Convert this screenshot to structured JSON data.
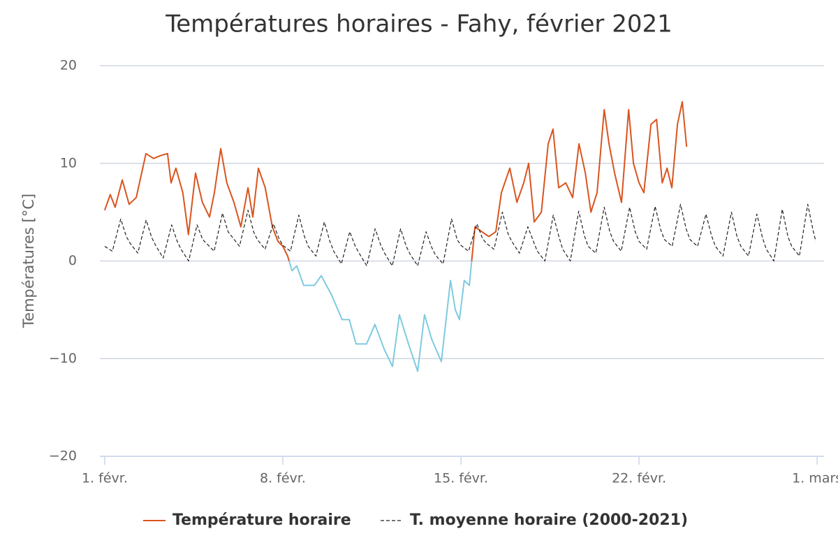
{
  "chart_data": {
    "type": "line",
    "title": "Températures horaires - Fahy, février 2021",
    "ylabel": "Températures [°C]",
    "xlim": [
      0.81,
      29.27
    ],
    "ylim": [
      -20,
      20
    ],
    "xticks": [
      {
        "value": 1,
        "label": "1. févr."
      },
      {
        "value": 8,
        "label": "8. févr."
      },
      {
        "value": 15,
        "label": "15. févr."
      },
      {
        "value": 22,
        "label": "22. févr."
      },
      {
        "value": 29,
        "label": "1. mars"
      }
    ],
    "yticks": [
      {
        "value": -20,
        "label": "−20"
      },
      {
        "value": -10,
        "label": "−10"
      },
      0,
      10,
      20
    ],
    "grid": true,
    "legend": "bottom",
    "series": [
      {
        "name": "Température horaire",
        "color": "#d9541e",
        "negative_color": "#7ecbe0",
        "dash": false,
        "x": [
          1.0,
          1.22,
          1.41,
          1.69,
          1.96,
          2.24,
          2.62,
          2.92,
          3.2,
          3.47,
          3.61,
          3.8,
          4.07,
          4.29,
          4.57,
          4.84,
          5.12,
          5.31,
          5.56,
          5.8,
          6.08,
          6.35,
          6.63,
          6.82,
          7.04,
          7.31,
          7.59,
          7.81,
          8.0,
          8.19,
          8.36,
          8.55,
          8.82,
          9.24,
          9.51,
          9.92,
          10.33,
          10.61,
          10.88,
          11.29,
          11.62,
          11.98,
          12.31,
          12.58,
          12.94,
          13.3,
          13.57,
          13.85,
          14.23,
          14.59,
          14.78,
          14.94,
          15.13,
          15.33,
          15.44,
          15.55,
          15.82,
          16.1,
          16.37,
          16.59,
          16.92,
          17.2,
          17.47,
          17.66,
          17.88,
          18.16,
          18.43,
          18.62,
          18.84,
          19.12,
          19.39,
          19.64,
          19.89,
          20.11,
          20.35,
          20.63,
          20.82,
          21.04,
          21.31,
          21.59,
          21.78,
          22.0,
          22.19,
          22.47,
          22.69,
          22.91,
          23.1,
          23.29,
          23.51,
          23.7,
          23.87
        ],
        "values": [
          5.2,
          6.8,
          5.5,
          8.3,
          5.8,
          6.5,
          11,
          10.5,
          10.8,
          11,
          8,
          9.5,
          7,
          2.7,
          9,
          6,
          4.5,
          7,
          11.5,
          8,
          6,
          3.5,
          7.5,
          4.5,
          9.5,
          7.5,
          3.5,
          2,
          1.5,
          0.5,
          -1,
          -0.5,
          -2.5,
          -2.5,
          -1.5,
          -3.5,
          -6,
          -6,
          -8.5,
          -8.5,
          -6.5,
          -9,
          -10.8,
          -5.5,
          -8.5,
          -11.3,
          -5.5,
          -8,
          -10.3,
          -2,
          -5,
          -6,
          -2,
          -2.5,
          0.5,
          3.5,
          3,
          2.5,
          3,
          7,
          9.5,
          6,
          8,
          10,
          4,
          5,
          12,
          13.5,
          7.5,
          8,
          6.5,
          12,
          9,
          5,
          7,
          15.5,
          12,
          9,
          6,
          15.5,
          10,
          8,
          7,
          14,
          14.5,
          8,
          9.5,
          7.5,
          14,
          16.3,
          11.7
        ]
      },
      {
        "name": "T. moyenne horaire (2000-2021)",
        "color": "#222222",
        "dash": true,
        "x": [
          1,
          1.3,
          1.63,
          1.85,
          2,
          2.3,
          2.63,
          2.85,
          3,
          3.3,
          3.63,
          3.85,
          4,
          4.3,
          4.63,
          4.85,
          5,
          5.3,
          5.63,
          5.85,
          6,
          6.3,
          6.63,
          6.85,
          7,
          7.3,
          7.63,
          7.85,
          8,
          8.3,
          8.63,
          8.85,
          9,
          9.3,
          9.63,
          9.85,
          10,
          10.3,
          10.63,
          10.85,
          11,
          11.3,
          11.63,
          11.85,
          12,
          12.3,
          12.63,
          12.85,
          13,
          13.3,
          13.63,
          13.85,
          14,
          14.3,
          14.63,
          14.85,
          15,
          15.3,
          15.63,
          15.85,
          16,
          16.3,
          16.63,
          16.85,
          17,
          17.3,
          17.63,
          17.85,
          18,
          18.3,
          18.63,
          18.85,
          19,
          19.3,
          19.63,
          19.85,
          20,
          20.3,
          20.63,
          20.85,
          21,
          21.3,
          21.63,
          21.85,
          22,
          22.3,
          22.63,
          22.85,
          23,
          23.3,
          23.63,
          23.85,
          24,
          24.3,
          24.63,
          24.85,
          25,
          25.3,
          25.63,
          25.85,
          26,
          26.3,
          26.63,
          26.85,
          27,
          27.3,
          27.63,
          27.85,
          28,
          28.3,
          28.63,
          28.85,
          28.95
        ],
        "values": [
          1.5,
          1.0,
          4.3,
          2.5,
          1.8,
          0.8,
          4.2,
          2.4,
          1.6,
          0.3,
          3.7,
          2.0,
          1.2,
          0,
          3.7,
          2.2,
          1.8,
          1.0,
          4.9,
          3.0,
          2.5,
          1.5,
          5.2,
          3.0,
          2.2,
          1.2,
          3.8,
          2.3,
          1.6,
          1.0,
          4.7,
          2.5,
          1.5,
          0.5,
          4.0,
          2.0,
          1.0,
          -0.3,
          3.0,
          1.5,
          0.8,
          -0.5,
          3.3,
          1.6,
          0.8,
          -0.5,
          3.3,
          1.5,
          0.7,
          -0.5,
          3.0,
          1.4,
          0.6,
          -0.3,
          4.3,
          2.2,
          1.6,
          1.0,
          3.8,
          2.3,
          1.8,
          1.2,
          5.0,
          2.8,
          2.0,
          0.8,
          3.5,
          2.0,
          1.0,
          0,
          4.7,
          2.5,
          1.2,
          0,
          5.1,
          2.6,
          1.5,
          0.8,
          5.5,
          3.0,
          2.0,
          1.0,
          5.5,
          3.0,
          2.0,
          1.2,
          5.6,
          3.2,
          2.2,
          1.5,
          5.8,
          3.3,
          2.2,
          1.5,
          4.8,
          2.6,
          1.5,
          0.5,
          5.0,
          2.5,
          1.5,
          0.5,
          4.8,
          2.4,
          1.2,
          0,
          5.3,
          2.5,
          1.5,
          0.5,
          5.8,
          3.0,
          2.0
        ]
      }
    ]
  }
}
